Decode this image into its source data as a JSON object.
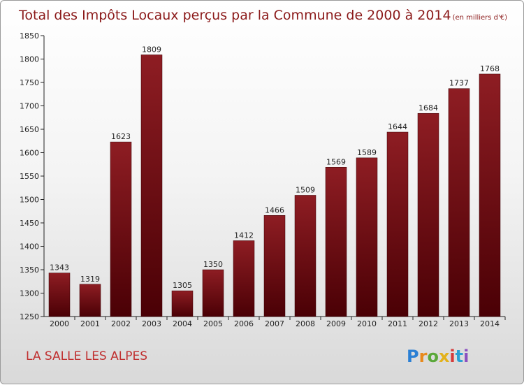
{
  "chart_data": {
    "type": "bar",
    "title": "Total des Impôts Locaux perçus par la Commune de 2000 à 2014",
    "unit": "(en milliers d'€)",
    "categories": [
      "2000",
      "2001",
      "2002",
      "2003",
      "2004",
      "2005",
      "2006",
      "2007",
      "2008",
      "2009",
      "2010",
      "2011",
      "2012",
      "2013",
      "2014"
    ],
    "values": [
      1343,
      1319,
      1623,
      1809,
      1305,
      1350,
      1412,
      1466,
      1509,
      1569,
      1589,
      1644,
      1684,
      1737,
      1768
    ],
    "ylim": [
      1250,
      1850
    ],
    "yticks": [
      1250,
      1300,
      1350,
      1400,
      1450,
      1500,
      1550,
      1600,
      1650,
      1700,
      1750,
      1800,
      1850
    ],
    "grid": false,
    "bar_color": "#7a0b12"
  },
  "commune_name": "LA SALLE LES ALPES",
  "logo": {
    "text": "Proxiti",
    "letter_colors": [
      "#2a7fd4",
      "#e8891b",
      "#5aa83a",
      "#e3b21c",
      "#d63a3a",
      "#2a9fd4",
      "#8a4fc0"
    ]
  }
}
